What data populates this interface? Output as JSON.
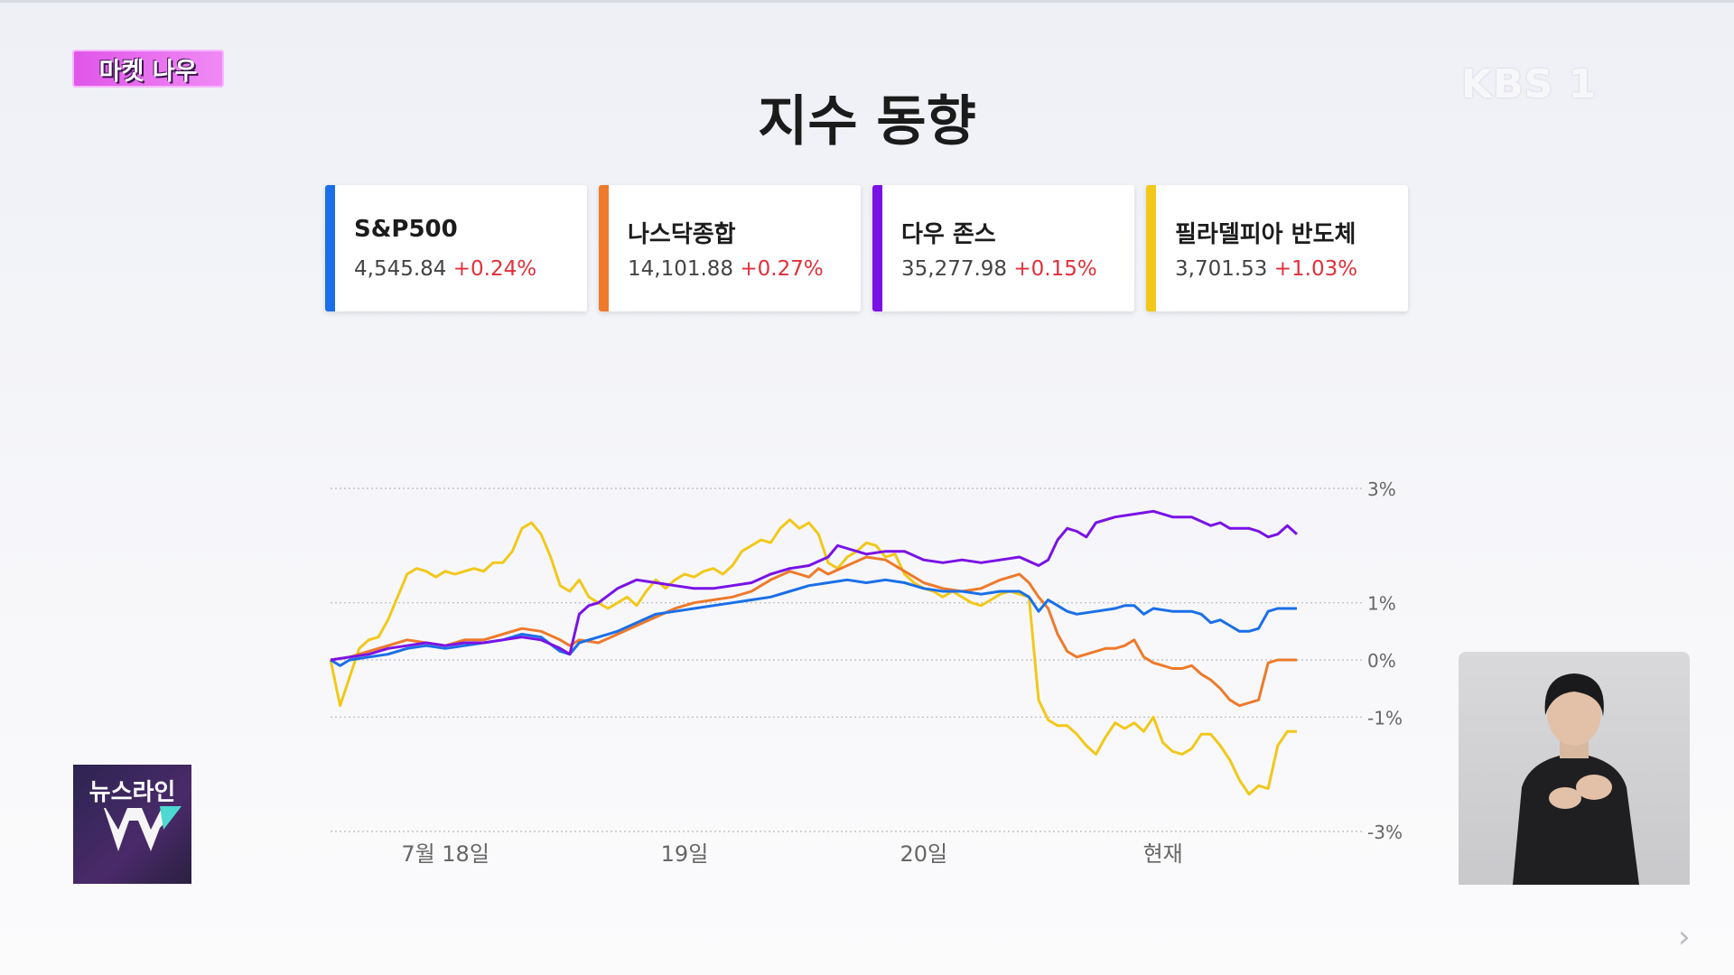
{
  "badge": {
    "text": "마켓 나우"
  },
  "logo": {
    "text": "KBS 1"
  },
  "title": "지수 동향",
  "cards": [
    {
      "name": "S&P500",
      "value": "4,545.84",
      "change": "+0.24%",
      "color": "#1a6fe8"
    },
    {
      "name": "나스닥종합",
      "value": "14,101.88",
      "change": "+0.27%",
      "color": "#ee7a2a"
    },
    {
      "name": "다우 존스",
      "value": "35,277.98",
      "change": "+0.15%",
      "color": "#7a12e6"
    },
    {
      "name": "필라델피아 반도체",
      "value": "3,701.53",
      "change": "+1.03%",
      "color": "#f2c81a"
    }
  ],
  "newsline": {
    "text": "뉴스라인"
  },
  "chart_data": {
    "type": "line",
    "title": "",
    "xlabel": "",
    "ylabel": "",
    "ylim": [
      -3,
      3
    ],
    "grid": true,
    "y_ticks": [
      {
        "value": 3,
        "label": "3%"
      },
      {
        "value": 1,
        "label": "1%"
      },
      {
        "value": 0,
        "label": "0%"
      },
      {
        "value": -1,
        "label": "-1%"
      },
      {
        "value": -3,
        "label": "-3%"
      }
    ],
    "x_ticks": [
      {
        "value": 12,
        "label": "7월 18일"
      },
      {
        "value": 37,
        "label": "19일"
      },
      {
        "value": 62,
        "label": "20일"
      },
      {
        "value": 87,
        "label": "현재"
      }
    ],
    "x_range": [
      0,
      101
    ],
    "series": [
      {
        "name": "필라델피아 반도체",
        "color": "#f2c81a",
        "points": [
          [
            0,
            0
          ],
          [
            1,
            -0.8
          ],
          [
            2,
            -0.3
          ],
          [
            3,
            0.2
          ],
          [
            4,
            0.35
          ],
          [
            5,
            0.4
          ],
          [
            6,
            0.7
          ],
          [
            7,
            1.1
          ],
          [
            8,
            1.5
          ],
          [
            9,
            1.6
          ],
          [
            10,
            1.55
          ],
          [
            11,
            1.45
          ],
          [
            12,
            1.55
          ],
          [
            13,
            1.5
          ],
          [
            14,
            1.55
          ],
          [
            15,
            1.6
          ],
          [
            16,
            1.55
          ],
          [
            17,
            1.7
          ],
          [
            18,
            1.7
          ],
          [
            19,
            1.9
          ],
          [
            20,
            2.3
          ],
          [
            21,
            2.4
          ],
          [
            22,
            2.2
          ],
          [
            23,
            1.8
          ],
          [
            24,
            1.3
          ],
          [
            25,
            1.2
          ],
          [
            26,
            1.4
          ],
          [
            27,
            1.1
          ],
          [
            28,
            1.0
          ],
          [
            29,
            0.9
          ],
          [
            30,
            1.0
          ],
          [
            31,
            1.1
          ],
          [
            32,
            0.95
          ],
          [
            33,
            1.2
          ],
          [
            34,
            1.4
          ],
          [
            35,
            1.25
          ],
          [
            36,
            1.4
          ],
          [
            37,
            1.5
          ],
          [
            38,
            1.45
          ],
          [
            39,
            1.55
          ],
          [
            40,
            1.6
          ],
          [
            41,
            1.5
          ],
          [
            42,
            1.65
          ],
          [
            43,
            1.9
          ],
          [
            44,
            2.0
          ],
          [
            45,
            2.1
          ],
          [
            46,
            2.05
          ],
          [
            47,
            2.3
          ],
          [
            48,
            2.45
          ],
          [
            49,
            2.3
          ],
          [
            50,
            2.4
          ],
          [
            51,
            2.2
          ],
          [
            52,
            1.7
          ],
          [
            53,
            1.6
          ],
          [
            54,
            1.8
          ],
          [
            55,
            1.9
          ],
          [
            56,
            2.05
          ],
          [
            57,
            2.0
          ],
          [
            58,
            1.8
          ],
          [
            59,
            1.85
          ],
          [
            60,
            1.5
          ],
          [
            61,
            1.35
          ],
          [
            62,
            1.25
          ],
          [
            63,
            1.2
          ],
          [
            64,
            1.1
          ],
          [
            65,
            1.2
          ],
          [
            66,
            1.1
          ],
          [
            67,
            1.0
          ],
          [
            68,
            0.95
          ],
          [
            69,
            1.05
          ],
          [
            70,
            1.15
          ],
          [
            71,
            1.2
          ],
          [
            72,
            1.15
          ],
          [
            73,
            1.1
          ],
          [
            74,
            -0.7
          ],
          [
            75,
            -1.05
          ],
          [
            76,
            -1.15
          ],
          [
            77,
            -1.15
          ],
          [
            78,
            -1.3
          ],
          [
            79,
            -1.5
          ],
          [
            80,
            -1.65
          ],
          [
            81,
            -1.35
          ],
          [
            82,
            -1.1
          ],
          [
            83,
            -1.2
          ],
          [
            84,
            -1.1
          ],
          [
            85,
            -1.25
          ],
          [
            86,
            -1.0
          ],
          [
            87,
            -1.45
          ],
          [
            88,
            -1.6
          ],
          [
            89,
            -1.65
          ],
          [
            90,
            -1.55
          ],
          [
            91,
            -1.3
          ],
          [
            92,
            -1.3
          ],
          [
            93,
            -1.5
          ],
          [
            94,
            -1.75
          ],
          [
            95,
            -2.1
          ],
          [
            96,
            -2.35
          ],
          [
            97,
            -2.2
          ],
          [
            98,
            -2.25
          ],
          [
            99,
            -1.5
          ],
          [
            100,
            -1.25
          ],
          [
            101,
            -1.25
          ]
        ]
      },
      {
        "name": "나스닥종합",
        "color": "#ee7a2a",
        "points": [
          [
            0,
            0
          ],
          [
            2,
            0.05
          ],
          [
            4,
            0.15
          ],
          [
            6,
            0.25
          ],
          [
            8,
            0.35
          ],
          [
            10,
            0.3
          ],
          [
            12,
            0.25
          ],
          [
            14,
            0.35
          ],
          [
            16,
            0.35
          ],
          [
            18,
            0.45
          ],
          [
            20,
            0.55
          ],
          [
            22,
            0.5
          ],
          [
            24,
            0.35
          ],
          [
            25,
            0.25
          ],
          [
            26,
            0.35
          ],
          [
            28,
            0.3
          ],
          [
            30,
            0.45
          ],
          [
            32,
            0.6
          ],
          [
            34,
            0.75
          ],
          [
            36,
            0.9
          ],
          [
            38,
            1.0
          ],
          [
            40,
            1.05
          ],
          [
            42,
            1.1
          ],
          [
            44,
            1.2
          ],
          [
            46,
            1.4
          ],
          [
            48,
            1.55
          ],
          [
            49,
            1.5
          ],
          [
            50,
            1.45
          ],
          [
            51,
            1.6
          ],
          [
            52,
            1.5
          ],
          [
            54,
            1.65
          ],
          [
            56,
            1.8
          ],
          [
            58,
            1.75
          ],
          [
            60,
            1.55
          ],
          [
            62,
            1.35
          ],
          [
            64,
            1.25
          ],
          [
            66,
            1.2
          ],
          [
            68,
            1.25
          ],
          [
            70,
            1.4
          ],
          [
            72,
            1.5
          ],
          [
            73,
            1.35
          ],
          [
            74,
            1.1
          ],
          [
            75,
            0.9
          ],
          [
            76,
            0.45
          ],
          [
            77,
            0.15
          ],
          [
            78,
            0.05
          ],
          [
            79,
            0.1
          ],
          [
            80,
            0.15
          ],
          [
            81,
            0.2
          ],
          [
            82,
            0.2
          ],
          [
            83,
            0.25
          ],
          [
            84,
            0.35
          ],
          [
            85,
            0.05
          ],
          [
            86,
            -0.05
          ],
          [
            87,
            -0.1
          ],
          [
            88,
            -0.15
          ],
          [
            89,
            -0.15
          ],
          [
            90,
            -0.1
          ],
          [
            91,
            -0.25
          ],
          [
            92,
            -0.35
          ],
          [
            93,
            -0.5
          ],
          [
            94,
            -0.7
          ],
          [
            95,
            -0.8
          ],
          [
            96,
            -0.75
          ],
          [
            97,
            -0.7
          ],
          [
            98,
            -0.05
          ],
          [
            99,
            0
          ],
          [
            100,
            0
          ],
          [
            101,
            0
          ]
        ]
      },
      {
        "name": "S&P500",
        "color": "#1a6fe8",
        "points": [
          [
            0,
            0
          ],
          [
            1,
            -0.1
          ],
          [
            2,
            0
          ],
          [
            4,
            0.05
          ],
          [
            6,
            0.1
          ],
          [
            8,
            0.2
          ],
          [
            10,
            0.25
          ],
          [
            12,
            0.2
          ],
          [
            14,
            0.25
          ],
          [
            16,
            0.3
          ],
          [
            18,
            0.35
          ],
          [
            20,
            0.45
          ],
          [
            22,
            0.4
          ],
          [
            24,
            0.15
          ],
          [
            25,
            0.1
          ],
          [
            26,
            0.3
          ],
          [
            28,
            0.4
          ],
          [
            30,
            0.5
          ],
          [
            32,
            0.65
          ],
          [
            34,
            0.8
          ],
          [
            36,
            0.85
          ],
          [
            38,
            0.9
          ],
          [
            40,
            0.95
          ],
          [
            42,
            1.0
          ],
          [
            44,
            1.05
          ],
          [
            46,
            1.1
          ],
          [
            48,
            1.2
          ],
          [
            50,
            1.3
          ],
          [
            52,
            1.35
          ],
          [
            54,
            1.4
          ],
          [
            56,
            1.35
          ],
          [
            58,
            1.4
          ],
          [
            60,
            1.35
          ],
          [
            62,
            1.25
          ],
          [
            64,
            1.2
          ],
          [
            66,
            1.2
          ],
          [
            68,
            1.15
          ],
          [
            70,
            1.2
          ],
          [
            72,
            1.2
          ],
          [
            73,
            1.1
          ],
          [
            74,
            0.85
          ],
          [
            75,
            1.05
          ],
          [
            76,
            0.95
          ],
          [
            77,
            0.85
          ],
          [
            78,
            0.8
          ],
          [
            80,
            0.85
          ],
          [
            82,
            0.9
          ],
          [
            83,
            0.95
          ],
          [
            84,
            0.95
          ],
          [
            85,
            0.8
          ],
          [
            86,
            0.9
          ],
          [
            88,
            0.85
          ],
          [
            90,
            0.85
          ],
          [
            91,
            0.8
          ],
          [
            92,
            0.65
          ],
          [
            93,
            0.7
          ],
          [
            94,
            0.6
          ],
          [
            95,
            0.5
          ],
          [
            96,
            0.5
          ],
          [
            97,
            0.55
          ],
          [
            98,
            0.85
          ],
          [
            99,
            0.9
          ],
          [
            101,
            0.9
          ]
        ]
      },
      {
        "name": "다우 존스",
        "color": "#7a12e6",
        "points": [
          [
            0,
            0
          ],
          [
            2,
            0.05
          ],
          [
            4,
            0.1
          ],
          [
            6,
            0.2
          ],
          [
            8,
            0.25
          ],
          [
            10,
            0.3
          ],
          [
            12,
            0.25
          ],
          [
            14,
            0.3
          ],
          [
            16,
            0.3
          ],
          [
            18,
            0.35
          ],
          [
            20,
            0.4
          ],
          [
            22,
            0.35
          ],
          [
            24,
            0.2
          ],
          [
            25,
            0.1
          ],
          [
            26,
            0.8
          ],
          [
            27,
            0.95
          ],
          [
            28,
            1.0
          ],
          [
            30,
            1.25
          ],
          [
            32,
            1.4
          ],
          [
            34,
            1.35
          ],
          [
            36,
            1.3
          ],
          [
            38,
            1.25
          ],
          [
            40,
            1.25
          ],
          [
            42,
            1.3
          ],
          [
            44,
            1.35
          ],
          [
            46,
            1.5
          ],
          [
            48,
            1.6
          ],
          [
            50,
            1.65
          ],
          [
            52,
            1.8
          ],
          [
            53,
            2.0
          ],
          [
            54,
            1.95
          ],
          [
            56,
            1.85
          ],
          [
            58,
            1.9
          ],
          [
            60,
            1.9
          ],
          [
            62,
            1.75
          ],
          [
            64,
            1.7
          ],
          [
            66,
            1.75
          ],
          [
            68,
            1.7
          ],
          [
            70,
            1.75
          ],
          [
            72,
            1.8
          ],
          [
            74,
            1.65
          ],
          [
            75,
            1.75
          ],
          [
            76,
            2.1
          ],
          [
            77,
            2.3
          ],
          [
            78,
            2.25
          ],
          [
            79,
            2.15
          ],
          [
            80,
            2.4
          ],
          [
            82,
            2.5
          ],
          [
            84,
            2.55
          ],
          [
            86,
            2.6
          ],
          [
            88,
            2.5
          ],
          [
            90,
            2.5
          ],
          [
            92,
            2.35
          ],
          [
            93,
            2.4
          ],
          [
            94,
            2.3
          ],
          [
            96,
            2.3
          ],
          [
            97,
            2.25
          ],
          [
            98,
            2.15
          ],
          [
            99,
            2.2
          ],
          [
            100,
            2.35
          ],
          [
            101,
            2.2
          ]
        ]
      }
    ]
  }
}
